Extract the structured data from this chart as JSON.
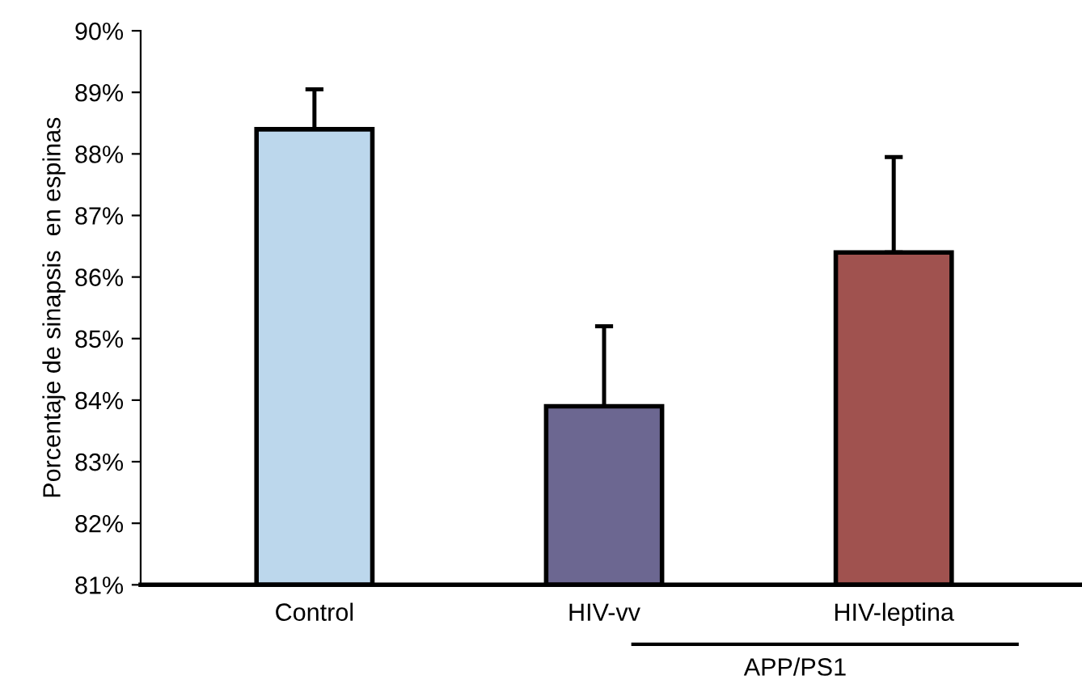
{
  "chart_data": {
    "type": "bar",
    "ylabel": "Porcentaje de sinapsis  en espinas",
    "categories": [
      "Control",
      "HIV-vv",
      "HIV-leptina"
    ],
    "values": [
      88.4,
      83.9,
      86.4
    ],
    "colors": [
      "#bcd7ec",
      "#6c6791",
      "#a0524f"
    ],
    "errors": [
      [
        88.4,
        89.05
      ],
      [
        83.9,
        85.2
      ],
      [
        86.4,
        87.95
      ]
    ],
    "ylim": [
      81,
      90
    ],
    "yticks": [
      {
        "value": 81,
        "label": "81%"
      },
      {
        "value": 82,
        "label": "82%"
      },
      {
        "value": 83,
        "label": "83%"
      },
      {
        "value": 84,
        "label": "84%"
      },
      {
        "value": 85,
        "label": "85%"
      },
      {
        "value": 86,
        "label": "86%"
      },
      {
        "value": 87,
        "label": "87%"
      },
      {
        "value": 88,
        "label": "88%"
      },
      {
        "value": 89,
        "label": "89%"
      },
      {
        "value": 90,
        "label": "90%"
      }
    ],
    "grid": false,
    "legend": false,
    "annotations": [
      "APP/PS1"
    ]
  }
}
